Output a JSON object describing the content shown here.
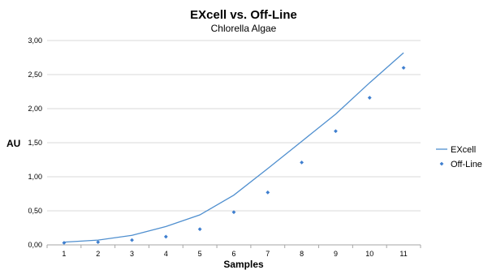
{
  "chart_data": {
    "type": "line",
    "title": "EXcell vs. Off-Line",
    "subtitle": "Chlorella Algae",
    "xlabel": "Samples",
    "ylabel": "AU",
    "categories": [
      "1",
      "2",
      "3",
      "4",
      "5",
      "6",
      "7",
      "8",
      "9",
      "10",
      "11"
    ],
    "ylim": [
      0,
      3
    ],
    "y_ticks": [
      "0,00",
      "0,50",
      "1,00",
      "1,50",
      "2,00",
      "2,50",
      "3,00"
    ],
    "grid": true,
    "legend_position": "right",
    "series": [
      {
        "name": "EXcell",
        "style": "line",
        "color": "#4f8fcf",
        "values": [
          0.04,
          0.07,
          0.14,
          0.27,
          0.44,
          0.73,
          1.12,
          1.52,
          1.92,
          2.38,
          2.82
        ]
      },
      {
        "name": "Off-Line",
        "style": "markers",
        "color": "#3f7fcf",
        "values": [
          0.03,
          0.04,
          0.07,
          0.12,
          0.23,
          0.48,
          0.77,
          1.21,
          1.67,
          2.16,
          2.6
        ]
      }
    ]
  }
}
